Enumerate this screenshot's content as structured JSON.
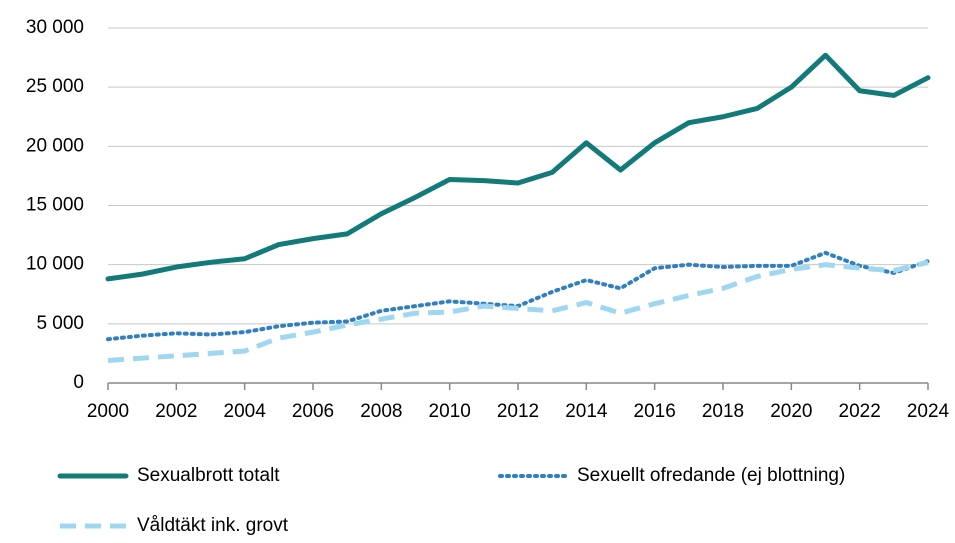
{
  "chart_data": {
    "type": "line",
    "x": [
      2000,
      2001,
      2002,
      2003,
      2004,
      2005,
      2006,
      2007,
      2008,
      2009,
      2010,
      2011,
      2012,
      2013,
      2014,
      2015,
      2016,
      2017,
      2018,
      2019,
      2020,
      2021,
      2022,
      2023,
      2024
    ],
    "series": [
      {
        "name": "Sexualbrott totalt",
        "color": "#137a7a",
        "style": "solid",
        "values": [
          8800,
          9200,
          9800,
          10200,
          10500,
          11700,
          12200,
          12600,
          14300,
          15700,
          17200,
          17100,
          16900,
          17800,
          20300,
          18000,
          20300,
          22000,
          22500,
          23200,
          25000,
          27700,
          24700,
          24300,
          25800
        ]
      },
      {
        "name": "Sexuellt ofredande (ej blottning)",
        "color": "#2f7fc1",
        "style": "dotted",
        "values": [
          3700,
          4000,
          4200,
          4100,
          4300,
          4800,
          5100,
          5200,
          6100,
          6500,
          6900,
          6700,
          6500,
          7700,
          8700,
          8000,
          9700,
          10000,
          9800,
          9900,
          9900,
          11000,
          9900,
          9300,
          10300
        ]
      },
      {
        "name": "Våldtäkt ink. grovt",
        "color": "#9fd7f0",
        "style": "dashed",
        "values": [
          1900,
          2100,
          2300,
          2500,
          2700,
          3800,
          4300,
          4900,
          5400,
          5900,
          6000,
          6500,
          6300,
          6100,
          6800,
          5900,
          6700,
          7400,
          8000,
          9000,
          9600,
          10000,
          9700,
          9500,
          10200
        ]
      }
    ],
    "xlim": [
      2000,
      2024
    ],
    "xticks": [
      2000,
      2002,
      2004,
      2006,
      2008,
      2010,
      2012,
      2014,
      2016,
      2018,
      2020,
      2022,
      2024
    ],
    "ylim": [
      0,
      30000
    ],
    "yticks": [
      0,
      {
        "value": 5000,
        "label": "5 000"
      },
      {
        "value": 10000,
        "label": "10 000"
      },
      {
        "value": 15000,
        "label": "15 000"
      },
      {
        "value": 20000,
        "label": "20 000"
      },
      {
        "value": 25000,
        "label": "25 000"
      },
      {
        "value": 30000,
        "label": "30 000"
      }
    ],
    "grid": true
  }
}
